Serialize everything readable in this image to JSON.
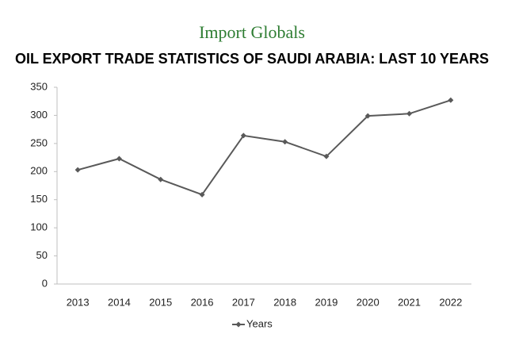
{
  "chart_data": {
    "type": "line",
    "logo": "Import Globals",
    "title": "OIL EXPORT TRADE STATISTICS OF SAUDI ARABIA: LAST 10 YEARS",
    "categories": [
      "2013",
      "2014",
      "2015",
      "2016",
      "2017",
      "2018",
      "2019",
      "2020",
      "2021",
      "2022"
    ],
    "series": [
      {
        "name": "Years",
        "color": "#595959",
        "values": [
          203,
          223,
          186,
          159,
          264,
          253,
          227,
          299,
          303,
          327
        ]
      }
    ],
    "ylim": [
      0,
      350
    ],
    "yticks": [
      0,
      50,
      100,
      150,
      200,
      250,
      300,
      350
    ],
    "grid": false,
    "legend": "bottom"
  }
}
